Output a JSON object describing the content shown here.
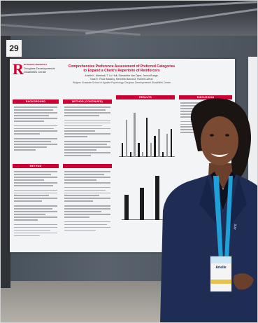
{
  "booth_number": "29",
  "poster": {
    "logo_letter": "R",
    "logo_line1": "RUTGERS UNIVERSITY",
    "logo_line2": "Douglass Developmental",
    "logo_line3": "Disabilities Center",
    "title_line1": "Comprehensive Preference Assessment of Preferred Categories",
    "title_line2": "to Expand a Client's Repertoire of Reinforcers",
    "authors_line1": "Arielle K. Marshall, T. Lu Holt, Samantha Van Dyne, Jenna Budge,",
    "authors_line2": "Kate E. Fiske Massey, Meredith Bamond, Robert LaRue",
    "affiliation": "Rutgers Graduate School of Applied Psychology, Douglass Developmental Disabilities Center",
    "sections": {
      "background": "BACKGROUND",
      "method_cont": "METHOD (CONTINUED)",
      "results": "RESULTS",
      "discussion": "DISCUSSION",
      "method": "METHOD"
    },
    "colors": {
      "accent": "#cc0033",
      "jacket": "#1f2d55"
    }
  },
  "badge": {
    "name": "Arielle",
    "lanyard_text": "ACE"
  },
  "chart_data": [
    {
      "type": "bar",
      "categories": [
        "1",
        "2",
        "3",
        "4",
        "5",
        "6",
        "7",
        "8",
        "9",
        "10",
        "11",
        "12",
        "13"
      ],
      "values": [
        0.3,
        0.8,
        0.1,
        0.95,
        0.3,
        0.1,
        0.85,
        0.3,
        0.45,
        0.6,
        0.1,
        0.5,
        0.6
      ],
      "ylim": [
        0,
        1
      ]
    },
    {
      "type": "bar",
      "categories": [
        "1",
        "2",
        "3"
      ],
      "values": [
        0.55,
        0.7,
        0.95
      ],
      "ylim": [
        0,
        1
      ]
    }
  ]
}
